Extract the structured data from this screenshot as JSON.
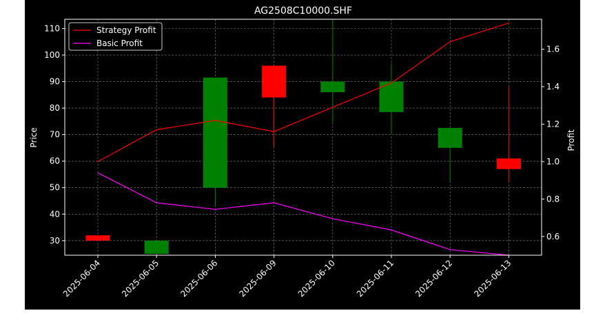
{
  "chart_data": {
    "type": "candlestick",
    "title": "AG2508C10000.SHF",
    "ylabel": "Price",
    "y2label": "Profit",
    "categories": [
      "2025-06-04",
      "2025-06-05",
      "2025-06-06",
      "2025-06-09",
      "2025-06-10",
      "2025-06-11",
      "2025-06-12",
      "2025-06-13"
    ],
    "ylim": [
      24.5,
      113.5
    ],
    "y2lim": [
      0.5,
      1.76
    ],
    "yticks": [
      30,
      40,
      50,
      60,
      70,
      80,
      90,
      100,
      110
    ],
    "y2ticks": [
      0.6,
      0.8,
      1.0,
      1.2,
      1.4,
      1.6
    ],
    "grid": true,
    "legend_position": "top-left",
    "candles": [
      {
        "open": 30,
        "close": 32,
        "high": 32,
        "low": 30
      },
      {
        "open": 30,
        "close": 25,
        "high": 30,
        "low": 25
      },
      {
        "open": 91.5,
        "close": 50,
        "high": 91.5,
        "low": 43
      },
      {
        "open": 84,
        "close": 96,
        "high": 96,
        "low": 65.5
      },
      {
        "open": 90,
        "close": 86,
        "high": 113,
        "low": 74
      },
      {
        "open": 90,
        "close": 78.5,
        "high": 97,
        "low": 70
      },
      {
        "open": 72.5,
        "close": 65,
        "high": 72.5,
        "low": 52
      },
      {
        "open": 57,
        "close": 61,
        "high": 88,
        "low": 52
      }
    ],
    "series": [
      {
        "name": "Strategy Profit",
        "axis": "y2",
        "color": "#ff0000",
        "values": [
          1.0,
          1.17,
          1.22,
          1.16,
          1.29,
          1.42,
          1.64,
          1.74
        ]
      },
      {
        "name": "Basic Profit",
        "axis": "y2",
        "color": "#ff00ff",
        "values": [
          0.94,
          0.78,
          0.745,
          0.78,
          0.695,
          0.635,
          0.53,
          0.5
        ]
      }
    ],
    "colors": {
      "up": "#ff0000",
      "down": "#008000",
      "grid": "#808080",
      "axes": "#ffffff",
      "background": "#000000"
    }
  }
}
